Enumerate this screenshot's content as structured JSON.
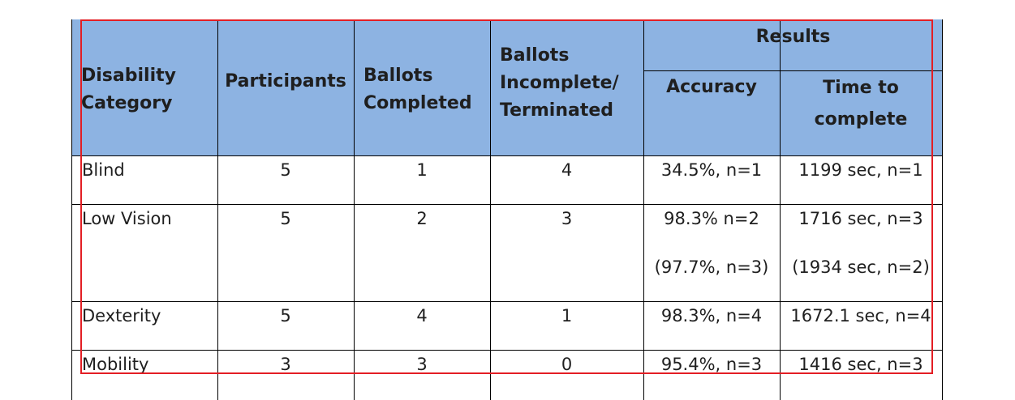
{
  "header": {
    "disability_category": "Disability Category",
    "participants": "Participants",
    "ballots_completed": "Ballots Completed",
    "ballots_incomplete": "Ballots Incomplete/ Terminated",
    "results": "Results",
    "accuracy": "Accuracy",
    "time_to_complete": "Time to complete"
  },
  "rows": [
    {
      "category": "Blind",
      "participants": "5",
      "completed": "1",
      "incomplete": "4",
      "accuracy": "34.5%, n=1",
      "accuracy_alt": "",
      "time": "1199 sec, n=1",
      "time_alt": ""
    },
    {
      "category": "Low Vision",
      "participants": "5",
      "completed": "2",
      "incomplete": "3",
      "accuracy": "98.3% n=2",
      "accuracy_alt": "(97.7%, n=3)",
      "time": "1716 sec, n=3",
      "time_alt": "(1934 sec, n=2)"
    },
    {
      "category": "Dexterity",
      "participants": "5",
      "completed": "4",
      "incomplete": "1",
      "accuracy": "98.3%, n=4",
      "accuracy_alt": "",
      "time": "1672.1 sec, n=4",
      "time_alt": ""
    },
    {
      "category": "Mobility",
      "participants": "3",
      "completed": "3",
      "incomplete": "0",
      "accuracy": "95.4%, n=3",
      "accuracy_alt": "",
      "time": "1416 sec, n=3",
      "time_alt": ""
    }
  ],
  "colors": {
    "header_bg": "#8db3e2",
    "highlight_border": "#e31e24"
  }
}
